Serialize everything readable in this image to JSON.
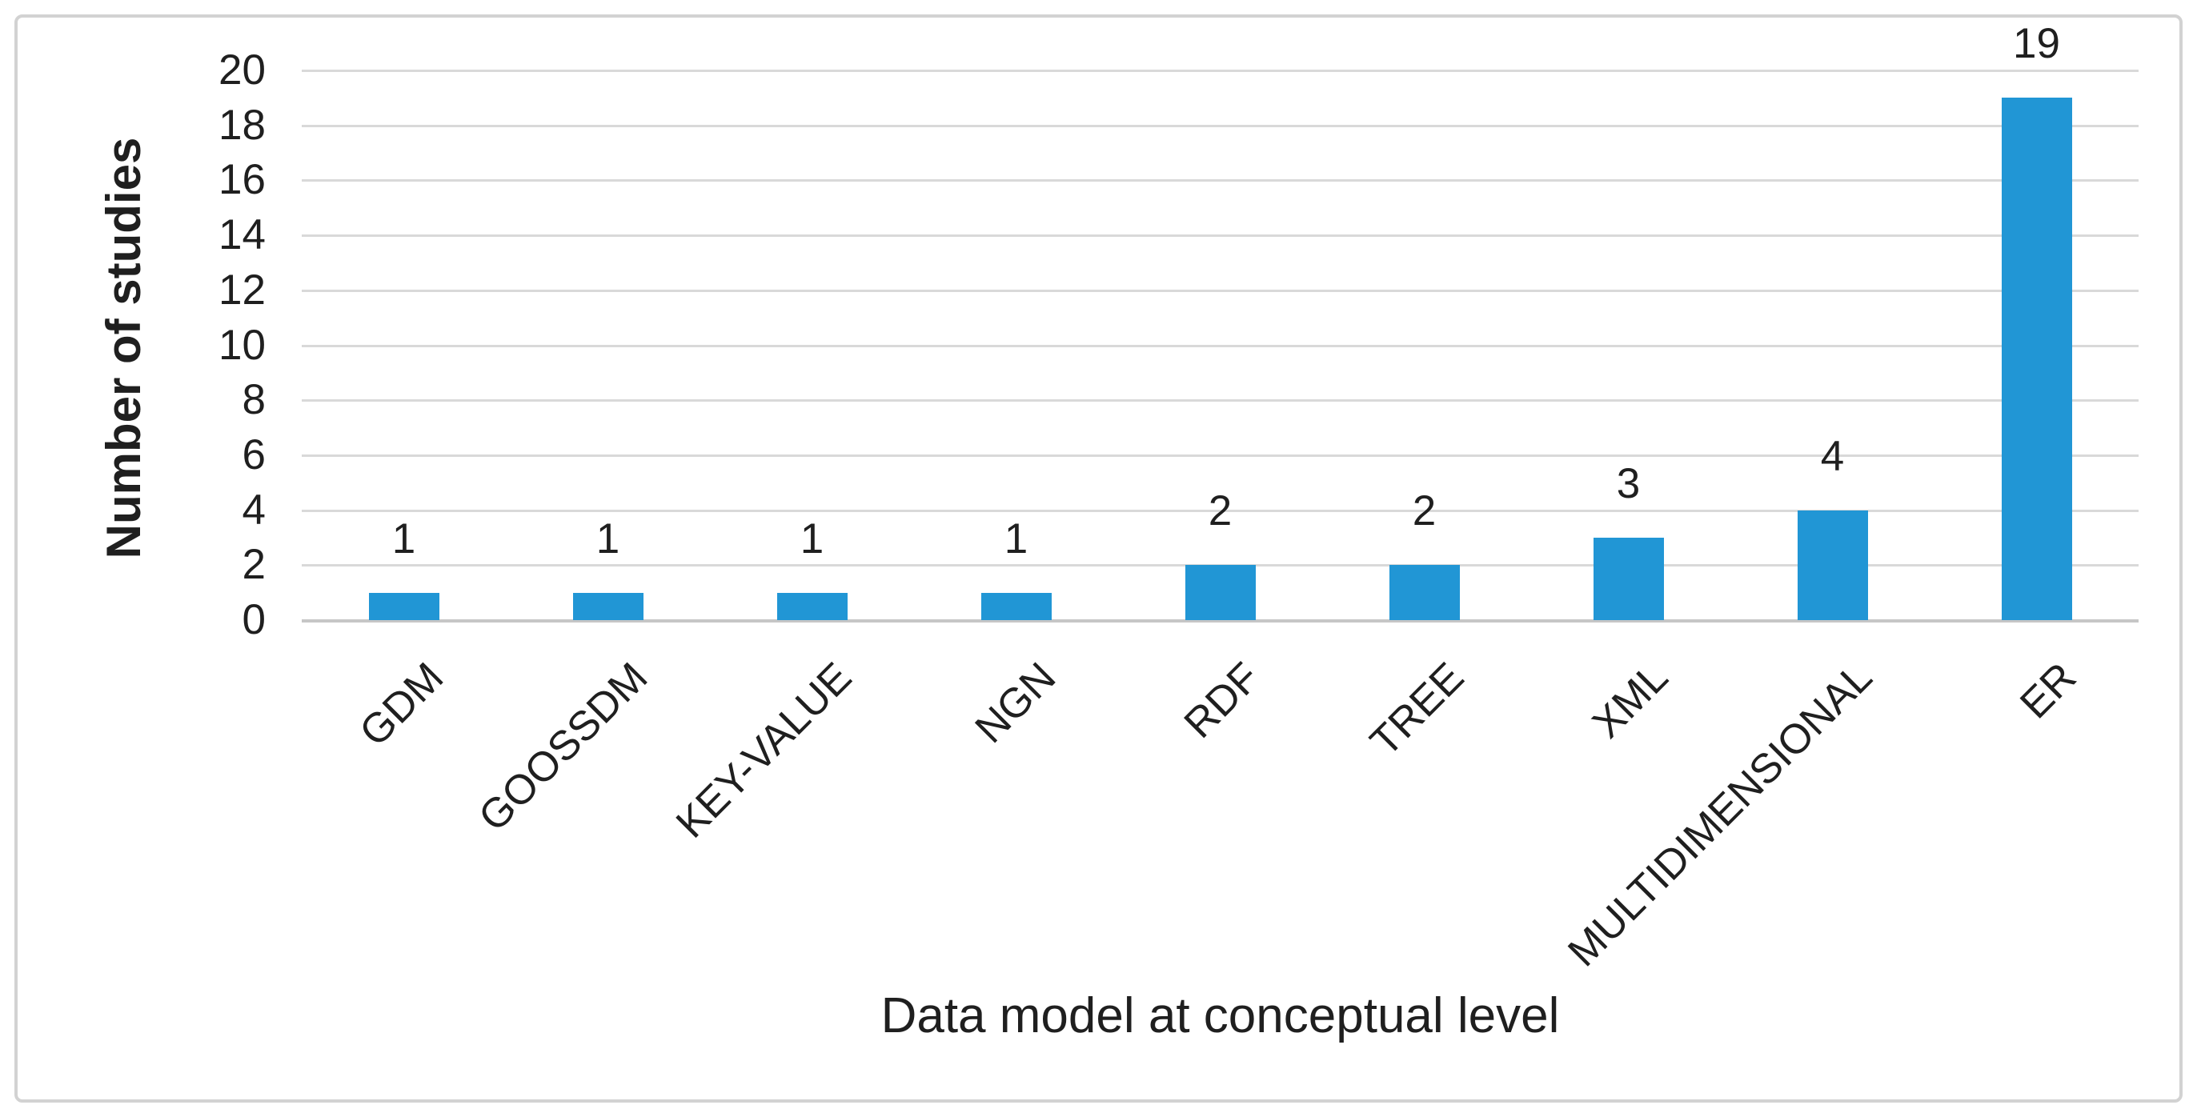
{
  "chart_data": {
    "type": "bar",
    "title": "",
    "xlabel": "Data model at conceptual level",
    "ylabel": "Number of studies",
    "categories": [
      "GDM",
      "GOOSSDM",
      "KEY-VALUE",
      "NGN",
      "RDF",
      "TREE",
      "XML",
      "MULTIDIMENSIONAL",
      "ER"
    ],
    "values": [
      1,
      1,
      1,
      1,
      2,
      2,
      3,
      4,
      19
    ],
    "data_labels": [
      "1",
      "1",
      "1",
      "1",
      "2",
      "2",
      "3",
      "4",
      "19"
    ],
    "yticks": [
      0,
      2,
      4,
      6,
      8,
      10,
      12,
      14,
      16,
      18,
      20
    ],
    "ylim": [
      0,
      20
    ],
    "grid": "horizontal",
    "legend": "none",
    "category_label_rotation_deg": -45
  },
  "colors": {
    "bar_fill": "#2196d5",
    "gridline": "#d9d9d9",
    "baseline": "#c6c6c6",
    "text": "#1f1f1f",
    "frame_border": "#d2d2d2",
    "background": "#ffffff"
  }
}
